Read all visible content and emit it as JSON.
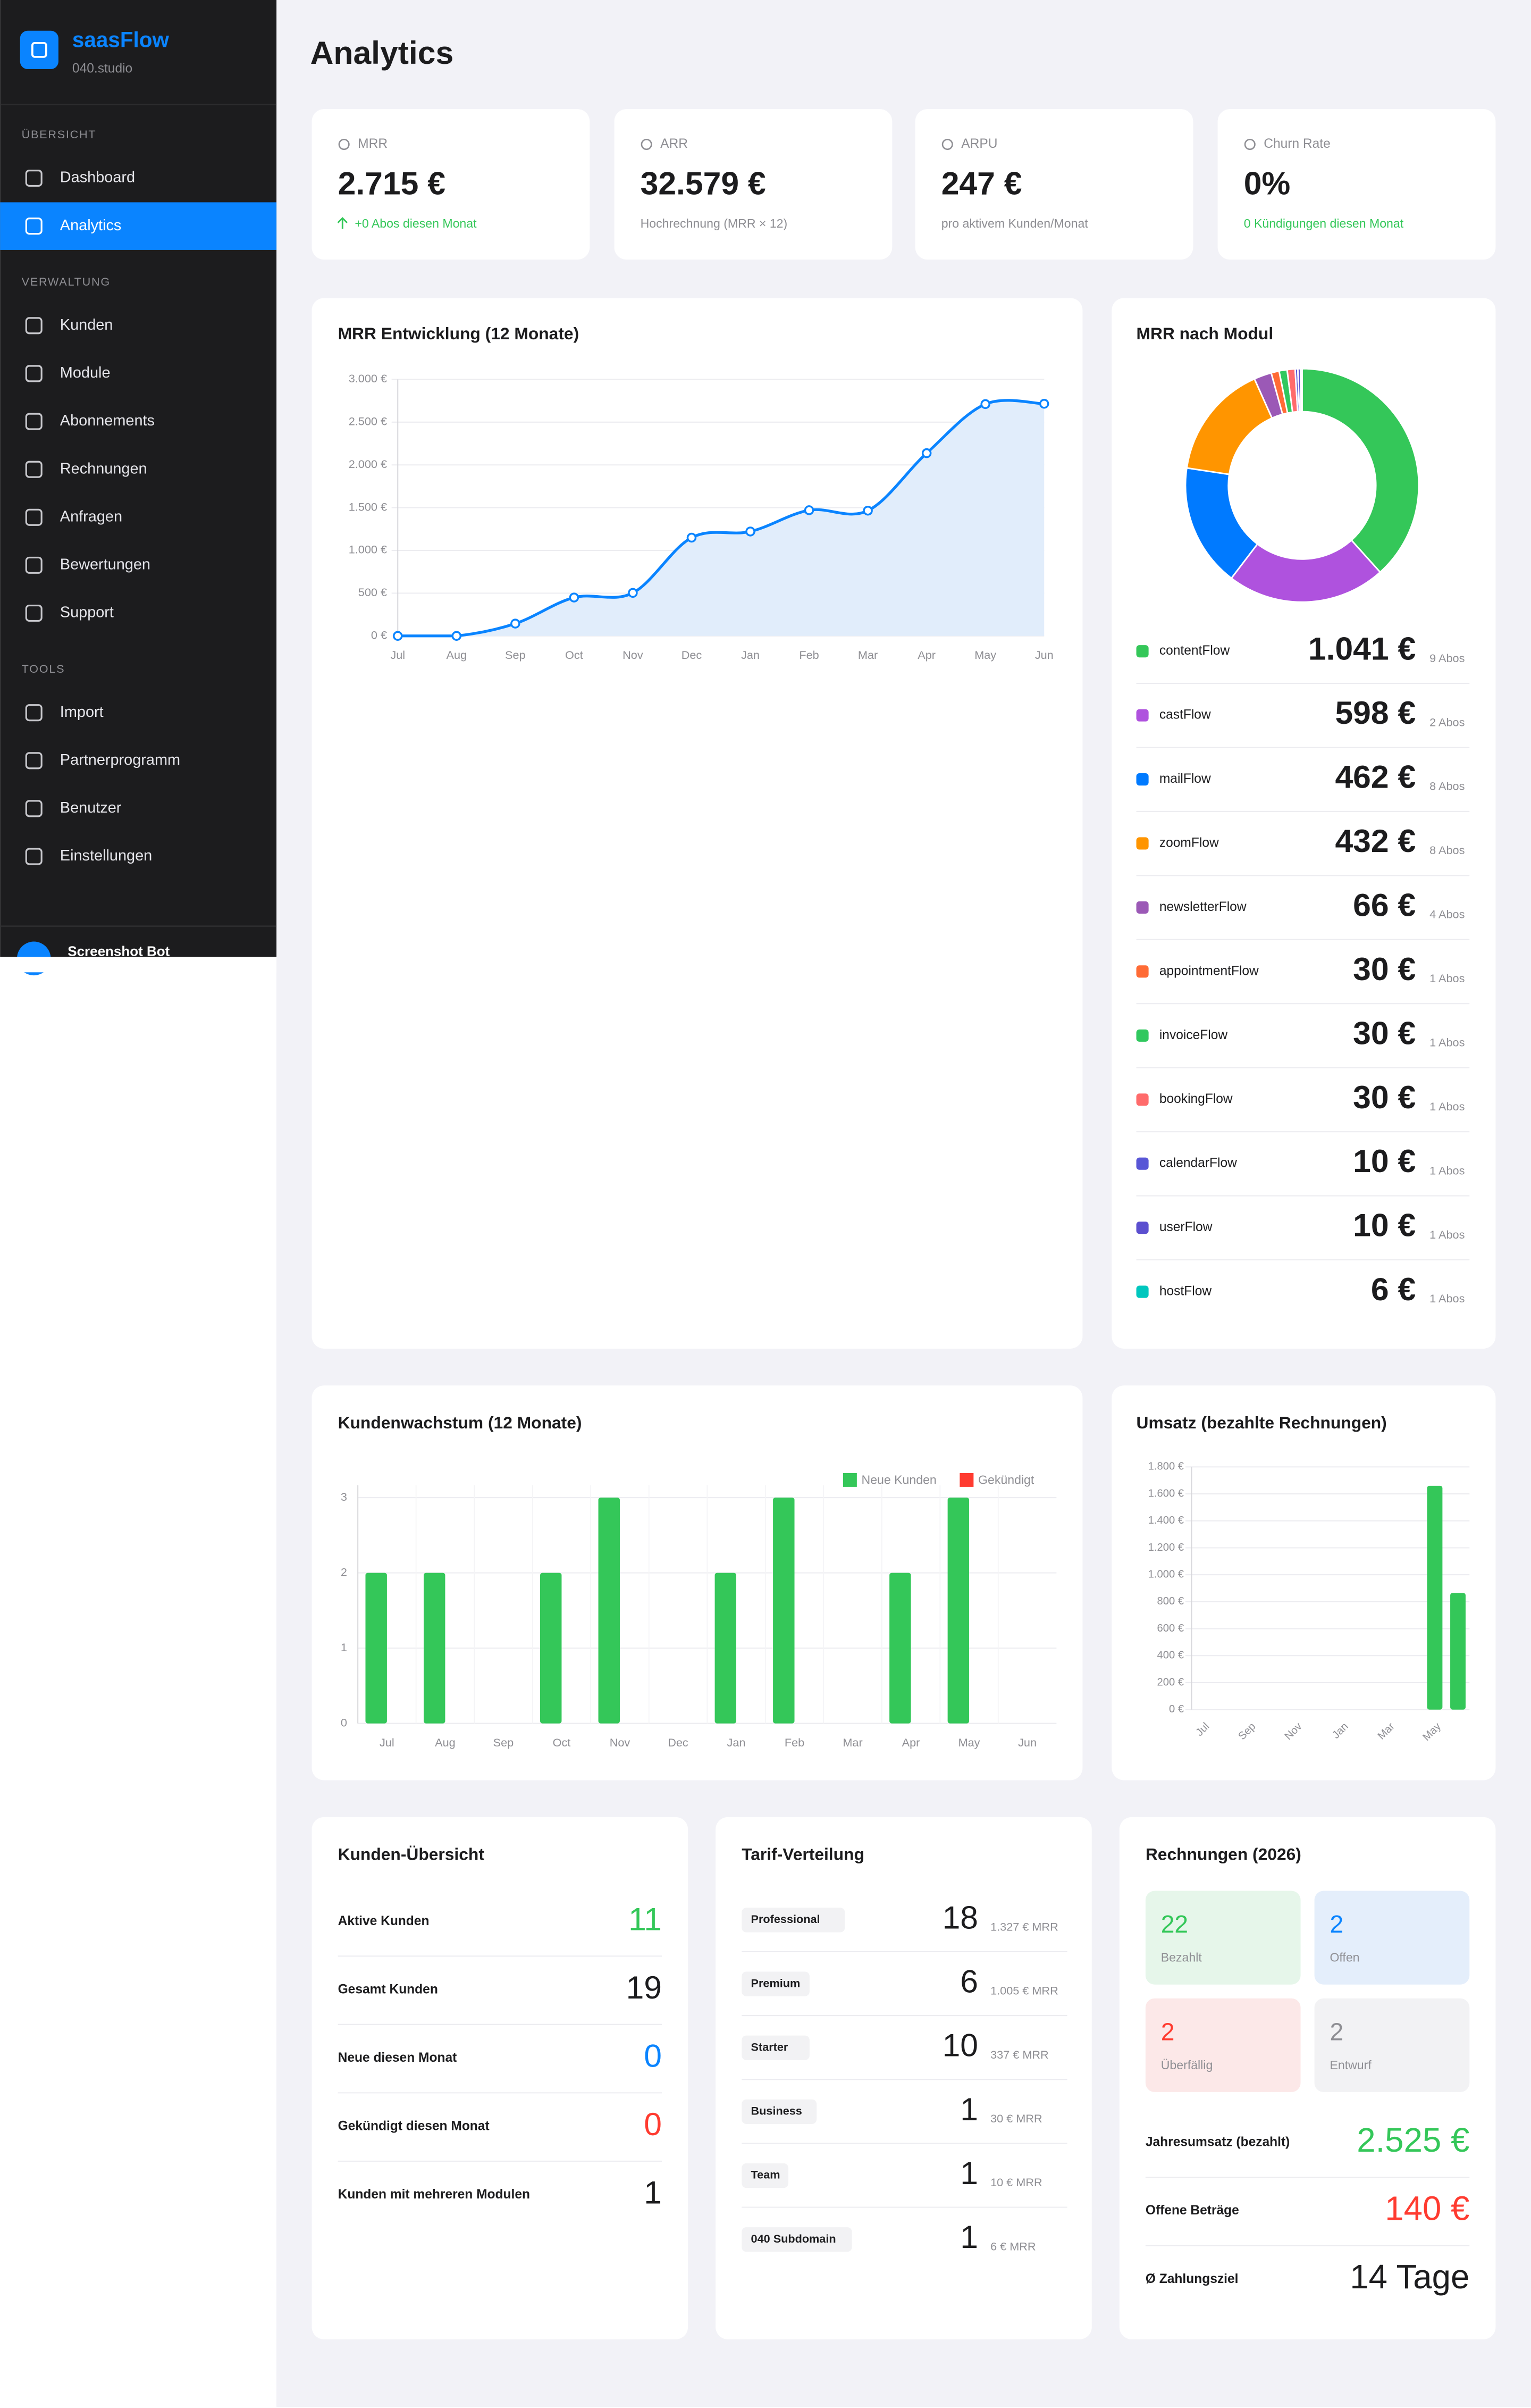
{
  "sidebar": {
    "brand": "saasFlow",
    "org": "040.studio",
    "sections": [
      {
        "title": "ÜBERSICHT",
        "items": [
          "Dashboard",
          "Analytics"
        ]
      },
      {
        "title": "VERWALTUNG",
        "items": [
          "Kunden",
          "Module",
          "Abonnements",
          "Rechnungen",
          "Anfragen",
          "Bewertungen",
          "Support"
        ]
      },
      {
        "title": "TOOLS",
        "items": [
          "Import",
          "Partnerprogramm",
          "Benutzer",
          "Einstellungen"
        ]
      }
    ],
    "user": "Screenshot Bot"
  },
  "page": {
    "title": "Analytics"
  },
  "kpis": [
    {
      "label": "MRR",
      "value": "2.715 €",
      "note": "+0 Abos diesen Monat",
      "note_color": "#34c759"
    },
    {
      "label": "ARR",
      "value": "32.579 €",
      "note": "Hochrechnung (MRR × 12)",
      "note_color": "#8e8e93"
    },
    {
      "label": "ARPU",
      "value": "247 €",
      "note": "pro aktivem Kunden/Monat",
      "note_color": "#8e8e93"
    },
    {
      "label": "Churn Rate",
      "value": "0%",
      "note": "0 Kündigungen diesen Monat",
      "note_color": "#34c759"
    }
  ],
  "mrr_chart": {
    "type": "line",
    "title": "MRR Entwicklung (12 Monate)",
    "categories": [
      "Jul",
      "Aug",
      "Sep",
      "Oct",
      "Nov",
      "Dec",
      "Jan",
      "Feb",
      "Mar",
      "Apr",
      "May",
      "Jun"
    ],
    "values": [
      0,
      0,
      144,
      449,
      503,
      1149,
      1221,
      1470,
      1465,
      2137,
      2711,
      2715
    ],
    "color": "#0a84ff",
    "fill": "#e1edfb",
    "ylim": [
      0,
      3000
    ],
    "yticks": [
      {
        "value": 0,
        "label": "0 €"
      },
      {
        "value": 500,
        "label": "500 €"
      },
      {
        "value": 1000,
        "label": "1.000 €"
      },
      {
        "value": 1500,
        "label": "1.500 €"
      },
      {
        "value": 2000,
        "label": "2.000 €"
      },
      {
        "value": 2500,
        "label": "2.500 €"
      },
      {
        "value": 3000,
        "label": "3.000 €"
      }
    ],
    "grid": true
  },
  "module_chart": {
    "type": "donut",
    "title": "MRR nach Modul",
    "categories": [
      "contentFlow",
      "castFlow",
      "mailFlow",
      "zoomFlow",
      "newsletterFlow",
      "appointmentFlow",
      "invoiceFlow",
      "bookingFlow",
      "calendarFlow",
      "userFlow",
      "hostFlow"
    ],
    "values": [
      1041,
      598,
      462,
      432,
      66,
      30,
      30,
      30,
      10,
      10,
      6
    ],
    "value_labels": [
      "1.041 €",
      "598 €",
      "462 €",
      "432 €",
      "66 €",
      "30 €",
      "30 €",
      "30 €",
      "10 €",
      "10 €",
      "6 €"
    ],
    "subscriptions": [
      "9 Abos",
      "2 Abos",
      "8 Abos",
      "8 Abos",
      "4 Abos",
      "1 Abos",
      "1 Abos",
      "1 Abos",
      "1 Abos",
      "1 Abos",
      "1 Abos"
    ],
    "colors": [
      "#34c759",
      "#af52de",
      "#007aff",
      "#ff9500",
      "#9b59b6",
      "#ff6b35",
      "#30c85e",
      "#ff6b6b",
      "#5856d6",
      "#5b4fcf",
      "#00c7be"
    ]
  },
  "growth_chart": {
    "type": "bar",
    "title": "Kundenwachstum (12 Monate)",
    "categories": [
      "Jul",
      "Aug",
      "Sep",
      "Oct",
      "Nov",
      "Dec",
      "Jan",
      "Feb",
      "Mar",
      "Apr",
      "May",
      "Jun"
    ],
    "series": [
      {
        "name": "Neue Kunden",
        "color": "#34c759",
        "values": [
          2,
          2,
          0,
          2,
          3,
          0,
          2,
          3,
          0,
          2,
          3,
          0
        ]
      },
      {
        "name": "Gekündigt",
        "color": "#ff3b30",
        "values": [
          0,
          0,
          0,
          0,
          0,
          0,
          0,
          0,
          0,
          0,
          0,
          0
        ]
      }
    ],
    "ylim": [
      0,
      3
    ],
    "yticks": [
      0,
      1,
      2,
      3
    ],
    "grid": true,
    "legend": "top-right"
  },
  "revenue_chart": {
    "type": "bar",
    "title": "Umsatz (bezahlte Rechnungen)",
    "categories": [
      "Jul",
      null,
      "Sep",
      null,
      "Nov",
      null,
      "Jan",
      null,
      "Mar",
      null,
      "May",
      null
    ],
    "values": [
      0,
      0,
      0,
      0,
      0,
      0,
      0,
      0,
      0,
      0,
      1660,
      865
    ],
    "color": "#34c759",
    "ylim": [
      0,
      1800
    ],
    "yticks": [
      {
        "value": 0,
        "label": "0 €"
      },
      {
        "value": 200,
        "label": "200 €"
      },
      {
        "value": 400,
        "label": "400 €"
      },
      {
        "value": 600,
        "label": "600 €"
      },
      {
        "value": 800,
        "label": "800 €"
      },
      {
        "value": 1000,
        "label": "1.000 €"
      },
      {
        "value": 1200,
        "label": "1.200 €"
      },
      {
        "value": 1400,
        "label": "1.400 €"
      },
      {
        "value": 1600,
        "label": "1.600 €"
      },
      {
        "value": 1800,
        "label": "1.800 €"
      }
    ],
    "grid": true
  },
  "customers": {
    "title": "Kunden-Übersicht",
    "rows": [
      {
        "label": "Aktive Kunden",
        "value": 11,
        "color": "#34c759"
      },
      {
        "label": "Gesamt Kunden",
        "value": 19,
        "color": "#1c1c1e"
      },
      {
        "label": "Neue diesen Monat",
        "value": 0,
        "color": "#0a84ff"
      },
      {
        "label": "Gekündigt diesen Monat",
        "value": 0,
        "color": "#ff3b30"
      },
      {
        "label": "Kunden mit mehreren Modulen",
        "value": 1,
        "color": "#1c1c1e"
      }
    ]
  },
  "tariffs": {
    "title": "Tarif-Verteilung",
    "rows": [
      {
        "name": "Professional",
        "count": 18,
        "mrr": "1.327 € MRR"
      },
      {
        "name": "Premium",
        "count": 6,
        "mrr": "1.005 € MRR"
      },
      {
        "name": "Starter",
        "count": 10,
        "mrr": "337 € MRR"
      },
      {
        "name": "Business",
        "count": 1,
        "mrr": "30 € MRR"
      },
      {
        "name": "Team",
        "count": 1,
        "mrr": "10 € MRR"
      },
      {
        "name": "040 Subdomain",
        "count": 1,
        "mrr": "6 € MRR"
      }
    ]
  },
  "invoices": {
    "title": "Rechnungen (2026)",
    "tiles": [
      {
        "value": 22,
        "label": "Bezahlt",
        "color": "#34c759",
        "background": "#e6f6ea"
      },
      {
        "value": 2,
        "label": "Offen",
        "color": "#0a84ff",
        "background": "#e4eefb"
      },
      {
        "value": 2,
        "label": "Überfällig",
        "color": "#ff3b30",
        "background": "#fce8e8"
      },
      {
        "value": 2,
        "label": "Entwurf",
        "color": "#8e8e93",
        "background": "#f2f2f4"
      }
    ],
    "rows": [
      {
        "label": "Jahresumsatz (bezahlt)",
        "value": "2.525 €",
        "color": "#34c759"
      },
      {
        "label": "Offene Beträge",
        "value": "140 €",
        "color": "#ff3b30"
      },
      {
        "label": "Ø Zahlungsziel",
        "value": "14 Tage",
        "color": "#1c1c1e"
      }
    ]
  }
}
